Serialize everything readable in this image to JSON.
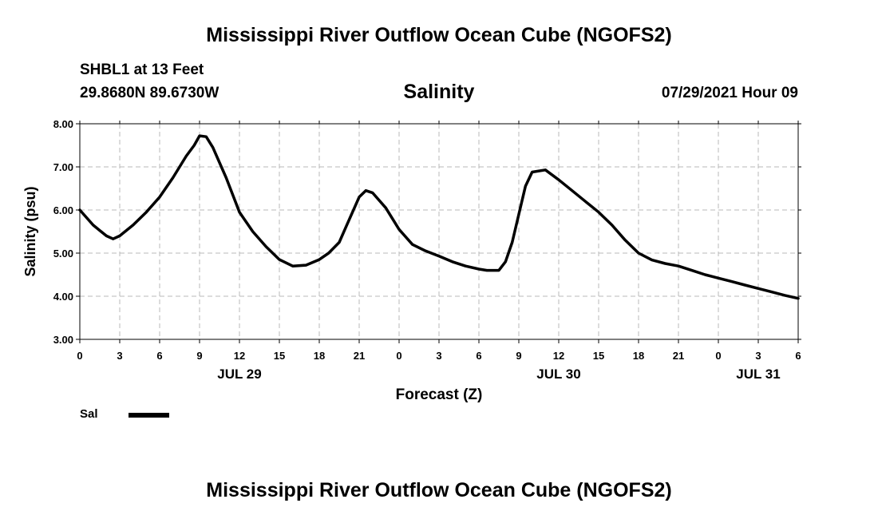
{
  "header": {
    "title": "Mississippi River Outflow Ocean Cube (NGOFS2)",
    "station": "SHBL1 at 13 Feet",
    "coords": "29.8680N  89.6730W",
    "timestamp": "07/29/2021 Hour 09"
  },
  "footer": {
    "title": "Mississippi River Outflow Ocean Cube (NGOFS2)"
  },
  "chart_data": {
    "type": "line",
    "title": "Salinity",
    "xlabel": "Forecast (Z)",
    "ylabel": "Salinity (psu)",
    "ylim": [
      3.0,
      8.0
    ],
    "xlim": [
      0,
      54
    ],
    "grid": true,
    "legend_position": "bottom-left",
    "x_tick_labels": [
      "0",
      "3",
      "6",
      "9",
      "12",
      "15",
      "18",
      "21",
      "0",
      "3",
      "6",
      "9",
      "12",
      "15",
      "18",
      "21",
      "0",
      "3",
      "6"
    ],
    "y_tick_labels": [
      "3.00",
      "4.00",
      "5.00",
      "6.00",
      "7.00",
      "8.00"
    ],
    "date_labels": [
      {
        "label": "JUL 29",
        "hour": 12
      },
      {
        "label": "JUL 30",
        "hour": 36
      },
      {
        "label": "JUL 31",
        "hour": 51
      }
    ],
    "series": [
      {
        "name": "Sal",
        "color": "#000000",
        "x": [
          0,
          1,
          2,
          2.5,
          3,
          4,
          5,
          6,
          7,
          8,
          8.6,
          9,
          9.5,
          10,
          11,
          12,
          13,
          14,
          15,
          16,
          17,
          18,
          18.7,
          19.5,
          20,
          21,
          21.5,
          22,
          23,
          24,
          25,
          26,
          27,
          28,
          29,
          30,
          30.6,
          31,
          31.5,
          32,
          32.5,
          33,
          33.5,
          34,
          35,
          36,
          37,
          38,
          39,
          40,
          41,
          42,
          43,
          44,
          45,
          46,
          47,
          48,
          49,
          50,
          51,
          52,
          53,
          54
        ],
        "values": [
          6.0,
          5.65,
          5.4,
          5.33,
          5.4,
          5.65,
          5.95,
          6.3,
          6.75,
          7.25,
          7.5,
          7.72,
          7.7,
          7.45,
          6.75,
          5.95,
          5.5,
          5.15,
          4.85,
          4.7,
          4.72,
          4.85,
          5.0,
          5.25,
          5.6,
          6.3,
          6.45,
          6.4,
          6.05,
          5.55,
          5.2,
          5.05,
          4.93,
          4.8,
          4.7,
          4.63,
          4.6,
          4.6,
          4.6,
          4.8,
          5.25,
          5.9,
          6.55,
          6.88,
          6.93,
          6.7,
          6.45,
          6.2,
          5.95,
          5.65,
          5.3,
          5.0,
          4.84,
          4.76,
          4.7,
          4.6,
          4.5,
          4.42,
          4.34,
          4.26,
          4.18,
          4.1,
          4.02,
          3.95
        ]
      }
    ]
  }
}
